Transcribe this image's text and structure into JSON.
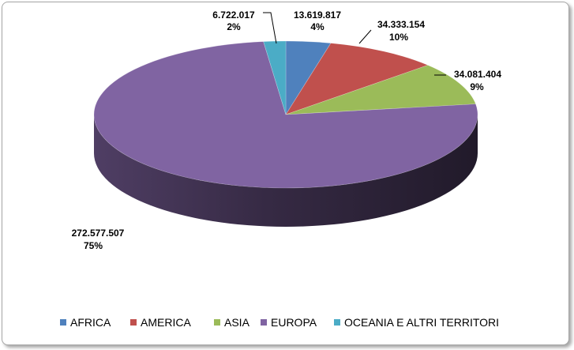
{
  "chart_data": {
    "type": "pie",
    "title": "",
    "categories": [
      "AFRICA",
      "AMERICA",
      "ASIA",
      "EUROPA",
      "OCEANIA E ALTRI TERRITORI"
    ],
    "values": [
      13619817,
      34333154,
      34081404,
      272577507,
      6722017
    ],
    "value_labels": [
      "13.619.817",
      "34.333.154",
      "34.081.404",
      "272.577.507",
      "6.722.017"
    ],
    "percent_labels": [
      "4%",
      "10%",
      "9%",
      "75%",
      "2%"
    ],
    "colors": [
      "#4f81bd",
      "#c0504d",
      "#9bbb59",
      "#8064a2",
      "#4bacc6"
    ],
    "legend_position": "bottom",
    "style": "3d-pie"
  }
}
